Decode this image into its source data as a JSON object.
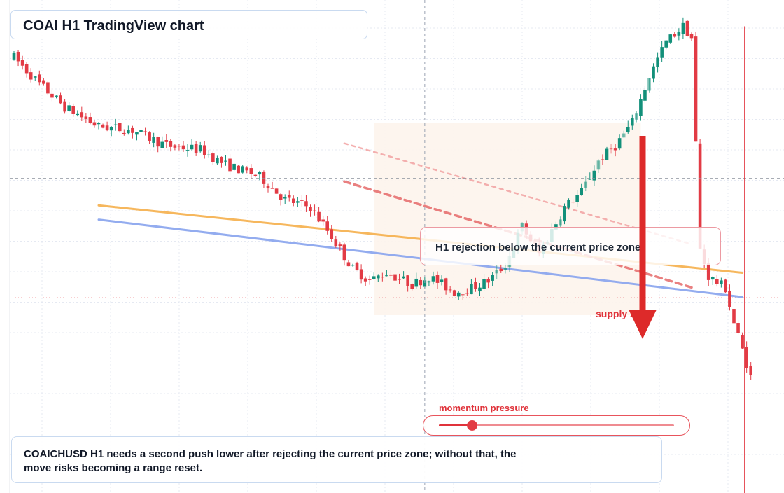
{
  "title": "COAI H1 TradingView chart",
  "callout": "H1 rejection below the current price zone",
  "zone_label": "supply zone",
  "momentum": {
    "label": "momentum pressure",
    "level": 0.14
  },
  "note": "COAICHUSD H1 needs a second push lower after rejecting the current price zone; without that, the move risks becoming a range reset.",
  "colors": {
    "bull": "#12907a",
    "bear": "#e23b45",
    "orange_trend": "#f6b04c",
    "blue_trend": "#8ea8ef",
    "red_dashed": "#e66a6a",
    "arrow": "#dd2a2a",
    "zone_fill": "#fdf4ec"
  },
  "chart_data": {
    "type": "candlestick",
    "timeframe": "H1",
    "symbol": "COAICHUSD",
    "candle_count": 125,
    "ylim": [
      0,
      100
    ],
    "price_path": [
      [
        0,
        87
      ],
      [
        6,
        80
      ],
      [
        12,
        74
      ],
      [
        20,
        69
      ],
      [
        28,
        68
      ],
      [
        36,
        64
      ],
      [
        44,
        63
      ],
      [
        50,
        59
      ],
      [
        58,
        56
      ],
      [
        64,
        50
      ],
      [
        70,
        48
      ],
      [
        74,
        42
      ],
      [
        80,
        32
      ],
      [
        84,
        29
      ],
      [
        88,
        31
      ],
      [
        94,
        28
      ],
      [
        98,
        30
      ],
      [
        104,
        26
      ],
      [
        108,
        27
      ],
      [
        112,
        29
      ],
      [
        116,
        33
      ],
      [
        120,
        43
      ],
      [
        124,
        36
      ],
      [
        130,
        48
      ],
      [
        134,
        52
      ],
      [
        138,
        60
      ],
      [
        142,
        64
      ],
      [
        146,
        70
      ],
      [
        150,
        82
      ],
      [
        154,
        91
      ],
      [
        158,
        95
      ],
      [
        160,
        92
      ],
      [
        162,
        37
      ],
      [
        164,
        30
      ],
      [
        168,
        27
      ],
      [
        170,
        18
      ],
      [
        174,
        4
      ]
    ],
    "trendlines": [
      {
        "name": "orange trendline",
        "from": [
          20,
          48.5
        ],
        "to": [
          172,
          31
        ]
      },
      {
        "name": "blue trendline",
        "from": [
          20,
          44.8
        ],
        "to": [
          172,
          24.7
        ]
      },
      {
        "name": "upper dashed resistance",
        "from": [
          78,
          64.6
        ],
        "to": [
          160,
          38.4
        ]
      },
      {
        "name": "lower dashed resistance",
        "from": [
          78,
          54.7
        ],
        "to": [
          160,
          27.2
        ]
      }
    ],
    "current_price": 24.5,
    "current_price_line": 55.5,
    "crosshair": {
      "x": 97,
      "y": 55.5
    },
    "supply_zone": [
      20,
      70
    ],
    "arrow": {
      "direction": "down",
      "from": 81,
      "to": 31
    }
  }
}
